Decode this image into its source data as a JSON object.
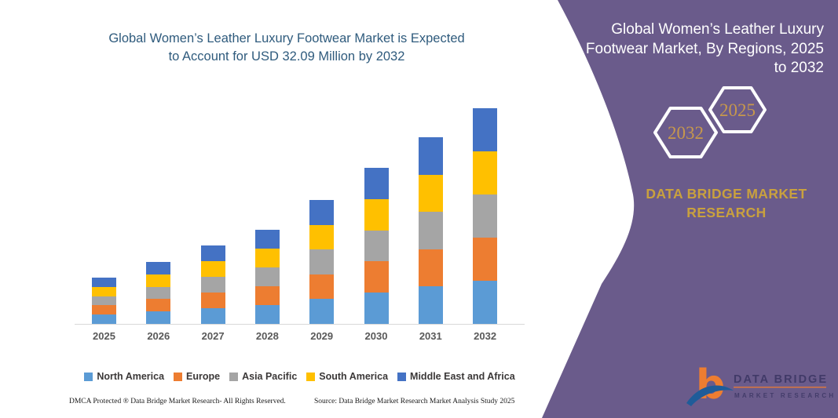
{
  "title": {
    "line1": "Global Women’s Leather Luxury Footwear Market is Expected",
    "line2": "to Account for USD 32.09 Million by 2032"
  },
  "chart_data": {
    "type": "bar",
    "stacked": true,
    "title": "Global Women’s Leather Luxury Footwear Market is Expected to Account for USD 32.09 Million by 2032",
    "unit": "USD Million",
    "categories": [
      "2025",
      "2026",
      "2027",
      "2028",
      "2029",
      "2030",
      "2031",
      "2032"
    ],
    "series": [
      {
        "name": "North America",
        "color": "#5B9BD5",
        "values": [
          1.38,
          1.84,
          2.33,
          2.8,
          3.69,
          4.64,
          5.55,
          6.42
        ]
      },
      {
        "name": "Europe",
        "color": "#ED7D31",
        "values": [
          1.38,
          1.84,
          2.33,
          2.8,
          3.69,
          4.64,
          5.55,
          6.42
        ]
      },
      {
        "name": "Asia Pacific",
        "color": "#A5A5A5",
        "values": [
          1.38,
          1.84,
          2.33,
          2.8,
          3.69,
          4.64,
          5.55,
          6.42
        ]
      },
      {
        "name": "South America",
        "color": "#FFC000",
        "values": [
          1.38,
          1.84,
          2.33,
          2.8,
          3.69,
          4.64,
          5.55,
          6.42
        ]
      },
      {
        "name": "Middle East and Africa",
        "color": "#4472C4",
        "values": [
          1.38,
          1.84,
          2.33,
          2.8,
          3.69,
          4.64,
          5.55,
          6.42
        ]
      }
    ],
    "totals_estimated": [
      6.9,
      9.2,
      11.65,
      14.0,
      18.45,
      23.2,
      27.75,
      32.09
    ],
    "ylim": [
      0,
      34
    ],
    "gridlines": false,
    "y_axis_visible": false,
    "legend_position": "bottom"
  },
  "footer": {
    "left": "DMCA Protected ® Data Bridge Market Research-  All Rights Reserved.",
    "right": "Source: Data Bridge Market Research  Market Analysis Study 2025"
  },
  "right_panel": {
    "title_lines": [
      "Global Women’s Leather Luxury",
      "Footwear Market, By Regions, 2025",
      "to 2032"
    ],
    "hexagon_back_label": "2032",
    "hexagon_front_label": "2025",
    "brand_line1": "DATA BRIDGE MARKET",
    "brand_line2": "RESEARCH",
    "logo_wordmark": "DATA BRIDGE",
    "logo_subtext": "MARKET RESEARCH"
  },
  "colors": {
    "panel_purple": "#6A5B8B",
    "title_text": "#2F5B7D",
    "panel_title_text": "#FFFFFF",
    "hex_year_gold": "#C7984C",
    "brand_gold": "#C9A13E",
    "axis_label": "#595959",
    "legend_text": "#3B3838",
    "baseline": "#D9D9D9",
    "logo_orange": "#ED7D31",
    "logo_blue": "#1F5C99",
    "logo_text": "#3D3765"
  }
}
